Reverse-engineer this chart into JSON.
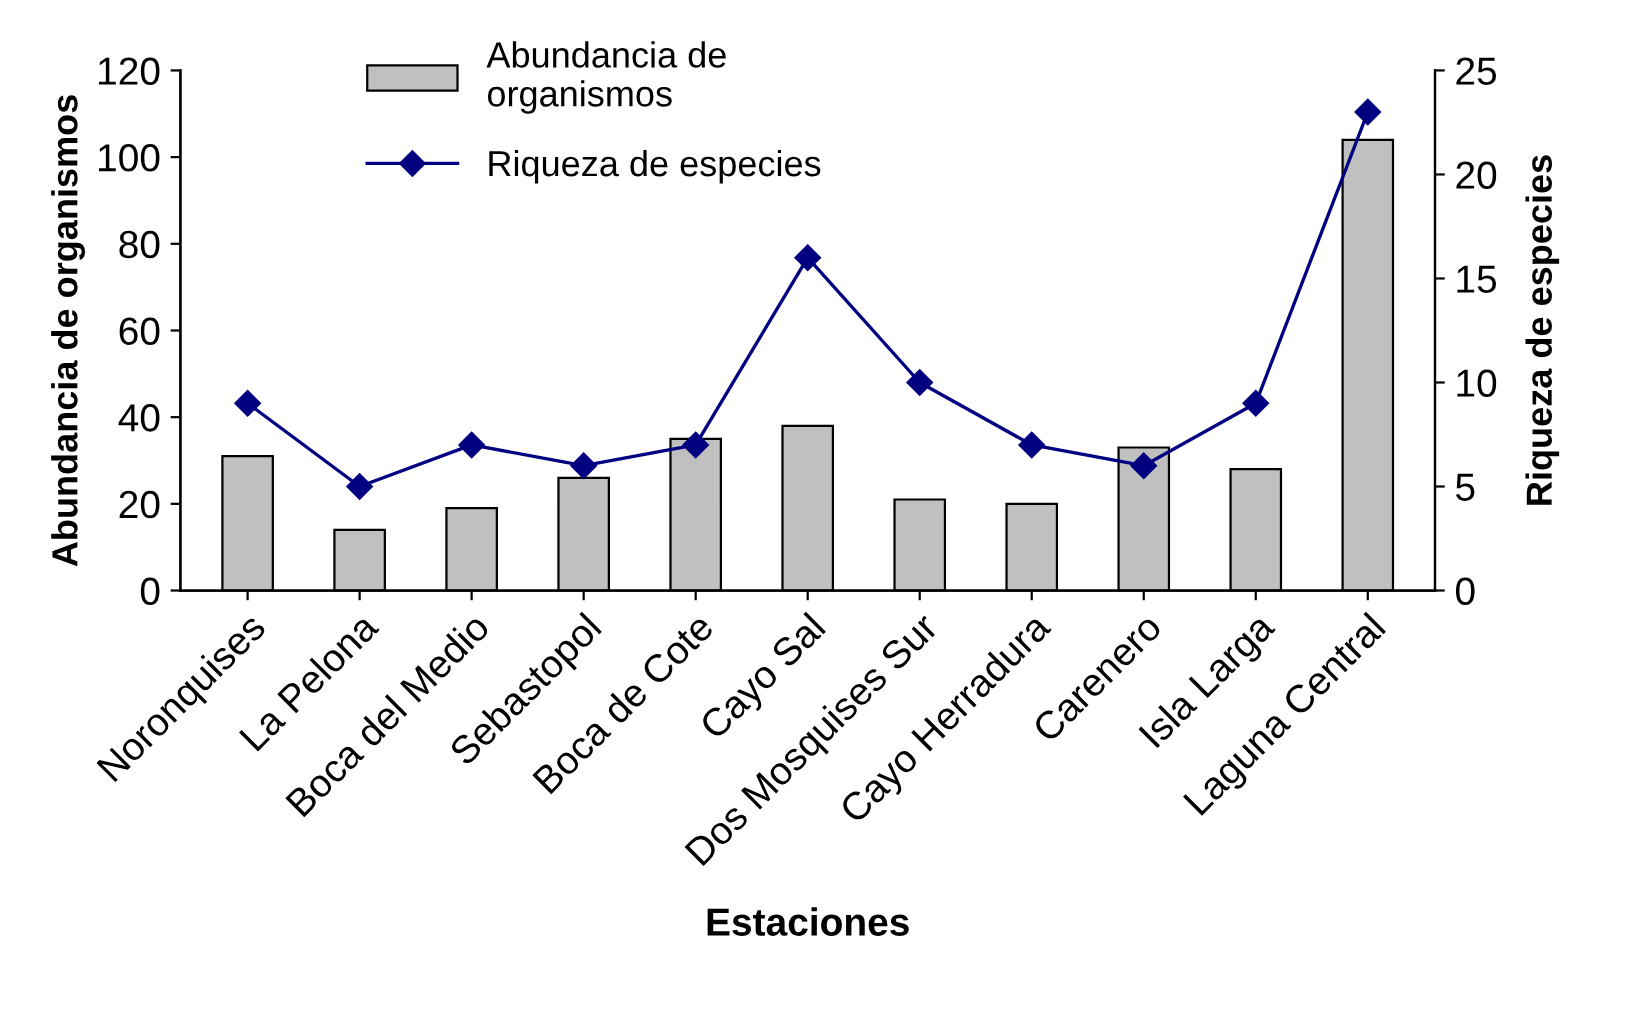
{
  "chart_data": {
    "type": "bar",
    "xlabel": "Estaciones",
    "ylabel": "Abundancia de organismos",
    "y2label": "Riqueza de especies",
    "categories": [
      "Noronquises",
      "La Pelona",
      "Boca del Medio",
      "Sebastopol",
      "Boca de Cote",
      "Cayo Sal",
      "Dos Mosquises Sur",
      "Cayo Herradura",
      "Carenero",
      "Isla Larga",
      "Laguna Central"
    ],
    "series": [
      {
        "name": "Abundancia de\norganismos",
        "color": "#c0c0c0",
        "values": [
          31,
          14,
          19,
          26,
          35,
          38,
          21,
          20,
          33,
          28,
          104
        ]
      },
      {
        "name": "Riqueza de especies",
        "type": "line",
        "axis": "y2",
        "color": "#000080",
        "marker": "diamond",
        "values": [
          9,
          5,
          7,
          6,
          7,
          16,
          10,
          7,
          6,
          9,
          23
        ]
      }
    ],
    "ylim": [
      0,
      120
    ],
    "yticks": [
      0,
      20,
      40,
      60,
      80,
      100,
      120
    ],
    "y2lim": [
      0,
      25
    ],
    "y2ticks": [
      0,
      5,
      10,
      15,
      20,
      25
    ],
    "grid": false,
    "legend": "top"
  }
}
